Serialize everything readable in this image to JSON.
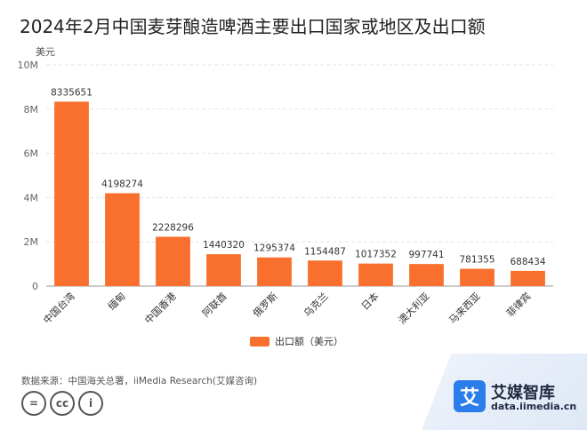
{
  "chart_data": {
    "type": "bar",
    "title": "2024年2月中国麦芽酿造啤酒主要出口国家或地区及出口额",
    "ylabel": "美元",
    "ylim": [
      0,
      10000000
    ],
    "yticks": [
      0,
      2000000,
      4000000,
      6000000,
      8000000,
      10000000
    ],
    "ytick_labels": [
      "0",
      "2M",
      "4M",
      "6M",
      "8M",
      "10M"
    ],
    "grid": true,
    "legend_position": "bottom",
    "categories": [
      "中国台湾",
      "缅甸",
      "中国香港",
      "阿联酋",
      "俄罗斯",
      "乌克兰",
      "日本",
      "澳大利亚",
      "马来西亚",
      "菲律宾"
    ],
    "series": [
      {
        "name": "出口额（美元）",
        "values": [
          8335651,
          4198274,
          2228296,
          1440320,
          1295374,
          1154487,
          1017352,
          997741,
          781355,
          688434
        ],
        "color": "#f96f2e"
      }
    ]
  },
  "source": "数据来源：中国海关总署，iiMedia Research(艾媒咨询)",
  "license_icons": [
    "equals-icon",
    "cc-icon",
    "person-icon"
  ],
  "license_glyphs": [
    "=",
    "cc",
    "i"
  ],
  "brand": {
    "logo_char": "艾",
    "name": "艾媒智库",
    "url": "data.iimedia.cn"
  }
}
